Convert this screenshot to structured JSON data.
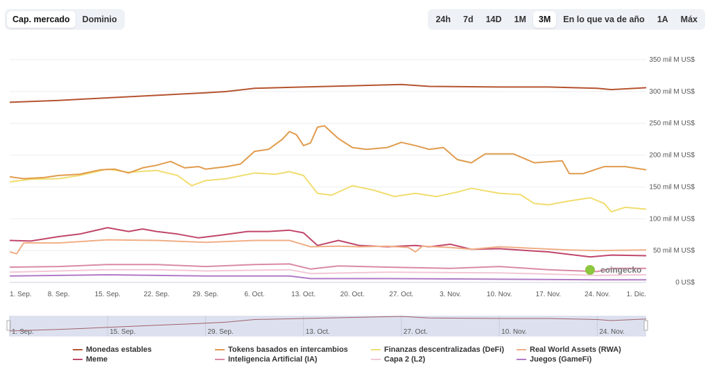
{
  "toggle": {
    "items": [
      "Cap. mercado",
      "Dominio"
    ],
    "selected": "Cap. mercado"
  },
  "ranges": {
    "items": [
      "24h",
      "7d",
      "14D",
      "1M",
      "3M",
      "En lo que va de año",
      "1A",
      "Máx"
    ],
    "selected": "3M"
  },
  "watermark": "coingecko",
  "chart_data": {
    "type": "line",
    "x_unit": "days since start shown as date ticks",
    "xticks": [
      "1. Sep.",
      "8. Sep.",
      "15. Sep.",
      "22. Sep.",
      "29. Sep.",
      "6. Oct.",
      "13. Oct.",
      "20. Oct.",
      "27. Oct.",
      "3. Nov.",
      "10. Nov.",
      "17. Nov.",
      "24. Nov.",
      "1. Dic."
    ],
    "yticks": [
      "0 US$",
      "50 mil M US$",
      "100 mil M US$",
      "150 mil M US$",
      "200 mil M US$",
      "250 mil M US$",
      "300 mil M US$",
      "350 mil M US$"
    ],
    "ylim": [
      0,
      350
    ],
    "ylabel_unit": "mil M US$",
    "grid": true,
    "legend_position": "bottom",
    "navigator_ticks": [
      "1. Sep.",
      "15. Sep.",
      "29. Sep.",
      "13. Oct.",
      "27. Oct.",
      "10. Nov.",
      "24. Nov."
    ],
    "series": [
      {
        "name": "Monedas estables",
        "color": "#b5532f",
        "points": [
          [
            0,
            283
          ],
          [
            7,
            286
          ],
          [
            14,
            290
          ],
          [
            21,
            294
          ],
          [
            28,
            298
          ],
          [
            31,
            300
          ],
          [
            35,
            305
          ],
          [
            42,
            307
          ],
          [
            49,
            309
          ],
          [
            56,
            311
          ],
          [
            60,
            308
          ],
          [
            70,
            307
          ],
          [
            77,
            307
          ],
          [
            84,
            305
          ],
          [
            86,
            303
          ],
          [
            91,
            306
          ]
        ]
      },
      {
        "name": "Tokens basados en intercambios",
        "color": "#e09b4c",
        "points": [
          [
            0,
            166
          ],
          [
            2,
            163
          ],
          [
            5,
            165
          ],
          [
            7,
            168
          ],
          [
            10,
            170
          ],
          [
            13,
            177
          ],
          [
            15,
            178
          ],
          [
            17,
            172
          ],
          [
            19,
            180
          ],
          [
            21,
            184
          ],
          [
            23,
            190
          ],
          [
            25,
            180
          ],
          [
            27,
            182
          ],
          [
            28,
            178
          ],
          [
            31,
            182
          ],
          [
            33,
            186
          ],
          [
            35,
            206
          ],
          [
            37,
            209
          ],
          [
            39,
            225
          ],
          [
            40,
            237
          ],
          [
            41,
            232
          ],
          [
            42,
            215
          ],
          [
            43,
            219
          ],
          [
            44,
            244
          ],
          [
            45,
            246
          ],
          [
            47,
            226
          ],
          [
            49,
            212
          ],
          [
            51,
            209
          ],
          [
            54,
            212
          ],
          [
            56,
            220
          ],
          [
            58,
            215
          ],
          [
            60,
            209
          ],
          [
            62,
            212
          ],
          [
            64,
            193
          ],
          [
            66,
            188
          ],
          [
            68,
            202
          ],
          [
            72,
            202
          ],
          [
            75,
            188
          ],
          [
            79,
            191
          ],
          [
            80,
            171
          ],
          [
            82,
            171
          ],
          [
            85,
            182
          ],
          [
            88,
            182
          ],
          [
            91,
            177
          ]
        ]
      },
      {
        "name": "Finanzas descentralizadas (DeFi)",
        "color": "#f0dd6e",
        "points": [
          [
            0,
            158
          ],
          [
            3,
            162
          ],
          [
            7,
            163
          ],
          [
            10,
            168
          ],
          [
            14,
            178
          ],
          [
            17,
            173
          ],
          [
            21,
            176
          ],
          [
            24,
            168
          ],
          [
            26,
            152
          ],
          [
            28,
            160
          ],
          [
            31,
            163
          ],
          [
            35,
            172
          ],
          [
            38,
            170
          ],
          [
            40,
            174
          ],
          [
            42,
            168
          ],
          [
            44,
            140
          ],
          [
            46,
            137
          ],
          [
            49,
            152
          ],
          [
            52,
            145
          ],
          [
            55,
            135
          ],
          [
            58,
            140
          ],
          [
            61,
            135
          ],
          [
            64,
            142
          ],
          [
            66,
            148
          ],
          [
            70,
            140
          ],
          [
            73,
            138
          ],
          [
            75,
            124
          ],
          [
            77,
            122
          ],
          [
            80,
            128
          ],
          [
            83,
            133
          ],
          [
            85,
            124
          ],
          [
            88,
            118
          ],
          [
            91,
            115
          ],
          [
            86,
            111
          ]
        ]
      },
      {
        "name": "Real World Assets (RWA)",
        "color": "#f0ae86",
        "points": [
          [
            0,
            48
          ],
          [
            1,
            45
          ],
          [
            2,
            62
          ],
          [
            7,
            62
          ],
          [
            14,
            67
          ],
          [
            21,
            66
          ],
          [
            28,
            63
          ],
          [
            35,
            66
          ],
          [
            40,
            66
          ],
          [
            43,
            56
          ],
          [
            47,
            57
          ],
          [
            50,
            56
          ],
          [
            54,
            57
          ],
          [
            57,
            55
          ],
          [
            58,
            48
          ],
          [
            59,
            57
          ],
          [
            63,
            55
          ],
          [
            66,
            52
          ],
          [
            70,
            56
          ],
          [
            74,
            54
          ],
          [
            80,
            51
          ],
          [
            84,
            50
          ],
          [
            91,
            51
          ]
        ]
      },
      {
        "name": "Meme",
        "color": "#c0466a",
        "points": [
          [
            0,
            66
          ],
          [
            3,
            65
          ],
          [
            7,
            72
          ],
          [
            10,
            76
          ],
          [
            14,
            86
          ],
          [
            17,
            80
          ],
          [
            19,
            84
          ],
          [
            21,
            80
          ],
          [
            24,
            76
          ],
          [
            27,
            70
          ],
          [
            30,
            74
          ],
          [
            34,
            80
          ],
          [
            37,
            80
          ],
          [
            40,
            82
          ],
          [
            42,
            78
          ],
          [
            44,
            58
          ],
          [
            47,
            66
          ],
          [
            50,
            58
          ],
          [
            54,
            56
          ],
          [
            58,
            58
          ],
          [
            60,
            56
          ],
          [
            63,
            60
          ],
          [
            66,
            52
          ],
          [
            70,
            53
          ],
          [
            74,
            50
          ],
          [
            77,
            48
          ],
          [
            80,
            44
          ],
          [
            83,
            40
          ],
          [
            86,
            43
          ],
          [
            91,
            42
          ]
        ]
      },
      {
        "name": "Inteligencia Artificial (IA)",
        "color": "#d98aa2",
        "points": [
          [
            0,
            24
          ],
          [
            7,
            25
          ],
          [
            14,
            28
          ],
          [
            21,
            28
          ],
          [
            28,
            25
          ],
          [
            35,
            28
          ],
          [
            40,
            29
          ],
          [
            43,
            21
          ],
          [
            47,
            26
          ],
          [
            54,
            24
          ],
          [
            63,
            22
          ],
          [
            70,
            25
          ],
          [
            77,
            20
          ],
          [
            84,
            17
          ],
          [
            86,
            22
          ],
          [
            91,
            22
          ]
        ]
      },
      {
        "name": "Capa 2 (L2)",
        "color": "#f2c6d6",
        "points": [
          [
            0,
            16
          ],
          [
            14,
            20
          ],
          [
            21,
            20
          ],
          [
            28,
            18
          ],
          [
            40,
            20
          ],
          [
            43,
            14
          ],
          [
            54,
            16
          ],
          [
            70,
            15
          ],
          [
            84,
            11
          ],
          [
            91,
            12
          ]
        ]
      },
      {
        "name": "Juegos (GameFi)",
        "color": "#b07ac6",
        "points": [
          [
            0,
            10
          ],
          [
            14,
            12
          ],
          [
            28,
            10
          ],
          [
            40,
            10
          ],
          [
            43,
            6
          ],
          [
            54,
            6
          ],
          [
            70,
            5
          ],
          [
            84,
            4
          ],
          [
            91,
            4
          ]
        ]
      }
    ]
  }
}
